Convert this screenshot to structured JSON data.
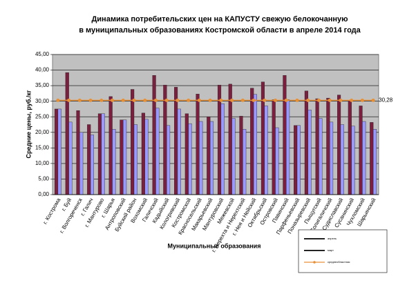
{
  "chart_data": {
    "type": "bar",
    "title": [
      "Динамика потребительских цен на КАПУСТУ свежую белокочанную",
      "в муниципальных образованиях Костромской области в апреле 2014 года"
    ],
    "y_label": "Средние цены, руб./кг",
    "x_label": "Муниципальные образования",
    "categories": [
      "г. Кострома",
      "г. Буй",
      "г. Волгореченск",
      "г. Галич",
      "г. Мантурово",
      "г. Шарья",
      "Антроповский",
      "Буйский район",
      "Вохомский",
      "Галичский",
      "Кадыйский",
      "Кологривский",
      "Костромской",
      "Красносельский",
      "Макарьевский",
      "Мантуровский",
      "Межевской",
      "г. Нерехта и Нерехтский",
      "г. Нея и Нейский",
      "Октябрьский",
      "Островский",
      "Павинский",
      "Парфеньевский",
      "Поназыревский",
      "Пыщугский",
      "Солигаличский",
      "Судиславский",
      "Сусанинский",
      "Чухломский",
      "Шарьинский"
    ],
    "series": [
      {
        "name": "апрель",
        "kind": "bar",
        "color": "#7b1f3f",
        "values": [
          27.5,
          39.2,
          27.0,
          22.5,
          26.0,
          31.5,
          24.0,
          33.8,
          26.2,
          38.3,
          35.2,
          34.5,
          26.0,
          32.3,
          25.0,
          35.2,
          35.5,
          25.2,
          34.2,
          36.2,
          30.5,
          38.3,
          22.2,
          33.3,
          30.8,
          31.0,
          32.0,
          30.3,
          28.5,
          23.2
        ]
      },
      {
        "name": "март",
        "kind": "bar",
        "color": "#9999ff",
        "values": [
          27.5,
          23.3,
          20.0,
          19.2,
          26.0,
          21.0,
          24.0,
          22.5,
          24.2,
          27.8,
          22.2,
          27.5,
          22.8,
          23.5,
          23.5,
          29.2,
          24.5,
          21.0,
          32.2,
          28.5,
          21.5,
          30.5,
          22.2,
          27.2,
          24.5,
          23.3,
          22.5,
          22.0,
          23.5,
          21.0
        ]
      },
      {
        "name": "среднеобластная",
        "kind": "line",
        "color": "#e69138",
        "values": [
          30.28,
          30.28,
          30.28,
          30.28,
          30.28,
          30.28,
          30.28,
          30.28,
          30.28,
          30.28,
          30.28,
          30.28,
          30.28,
          30.28,
          30.28,
          30.28,
          30.28,
          30.28,
          30.28,
          30.28,
          30.28,
          30.28,
          30.28,
          30.28,
          30.28,
          30.28,
          30.28,
          30.28,
          30.28,
          30.28
        ],
        "value_labels": [
          null,
          null,
          null,
          null,
          null,
          null,
          null,
          null,
          null,
          null,
          null,
          null,
          null,
          null,
          null,
          null,
          null,
          null,
          null,
          null,
          null,
          null,
          null,
          null,
          null,
          null,
          null,
          null,
          null,
          "30,28"
        ]
      }
    ],
    "ylim": [
      0,
      45
    ],
    "yticks": [
      {
        "value": 0,
        "label": "0,00"
      },
      {
        "value": 5,
        "label": "5,00"
      },
      {
        "value": 10,
        "label": "10,00"
      },
      {
        "value": 15,
        "label": "15,00"
      },
      {
        "value": 20,
        "label": "20,00"
      },
      {
        "value": 25,
        "label": "25,00"
      },
      {
        "value": 30,
        "label": "30,00"
      },
      {
        "value": 35,
        "label": "35,00"
      },
      {
        "value": 40,
        "label": "40,00"
      },
      {
        "value": 45,
        "label": "45,00"
      }
    ],
    "grid": true,
    "plot_background": "#c0c0c0",
    "legend": "lower right"
  }
}
